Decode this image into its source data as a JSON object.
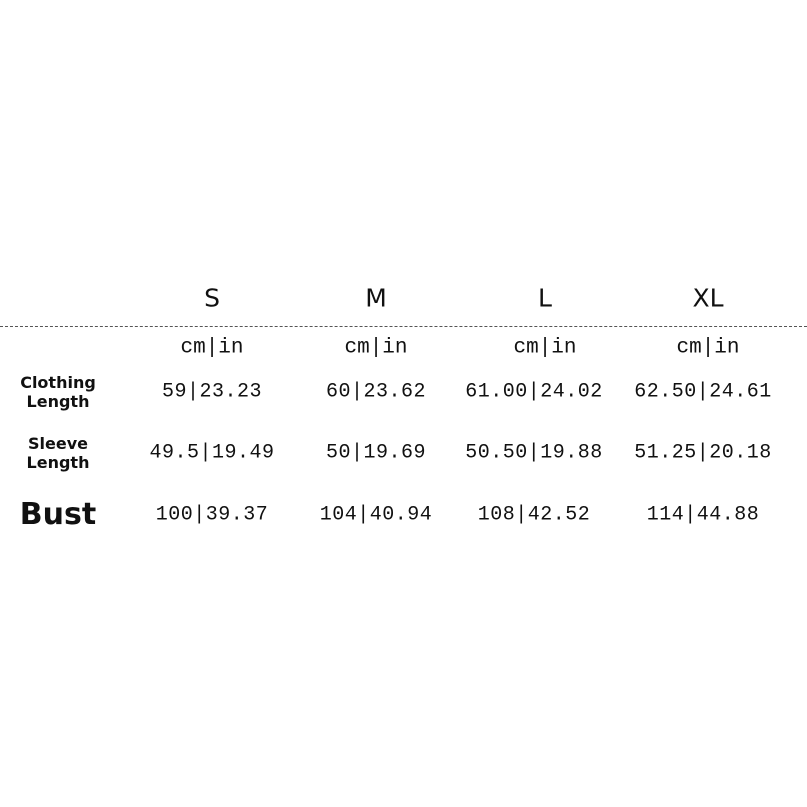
{
  "table": {
    "sizes": [
      "S",
      "M",
      "L",
      "XL"
    ],
    "units": [
      "cm|in",
      "cm|in",
      "cm|in",
      "cm|in"
    ],
    "rows": [
      {
        "label": "Clothing Length",
        "cells": [
          "59|23.23",
          "60|23.62",
          "61.00|24.02",
          "62.50|24.61"
        ]
      },
      {
        "label": "Sleeve Length",
        "cells": [
          "49.5|19.49",
          "50|19.69",
          "50.50|19.88",
          "51.25|20.18"
        ]
      },
      {
        "label": "Bust",
        "cells": [
          "100|39.37",
          "104|40.94",
          "108|42.52",
          "114|44.88"
        ]
      }
    ]
  }
}
